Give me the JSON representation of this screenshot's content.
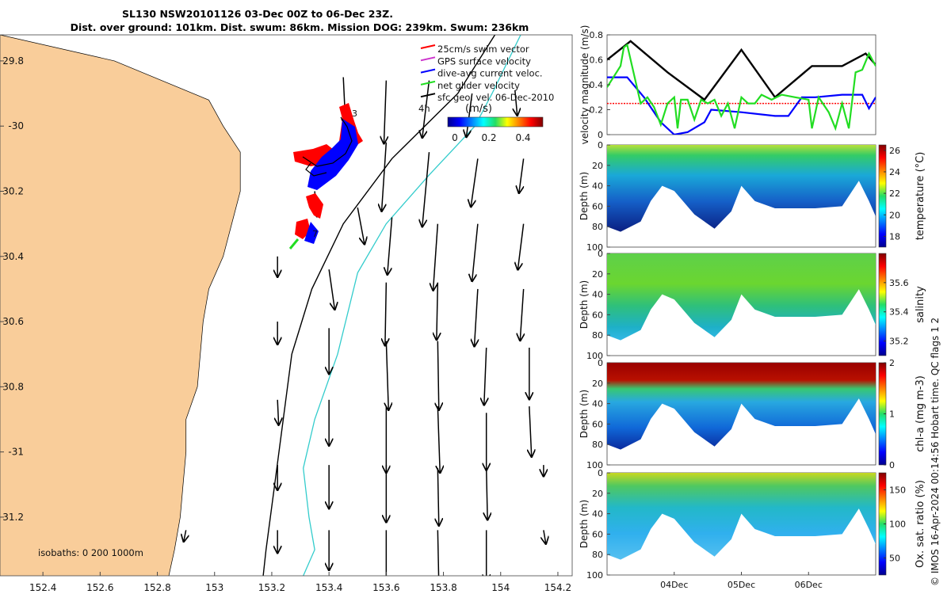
{
  "title_line1": "SL130 NSW20101126 03-Dec 00Z to 06-Dec 23Z.",
  "title_line2": "Dist. over ground: 101km. Dist. swum: 86km. Mission DOG: 239km. Swum: 236km",
  "credit": "© IMOS 16-Apr-2024 00:14:56 Hobart time. QC flags 1  2",
  "colors": {
    "land": "#f9cd9a",
    "swim_vector": "#ff0000",
    "gps_velocity": "#cc33cc",
    "dive_avg": "#0000ff",
    "net_glider": "#22dd22",
    "geo_vel": "#000000",
    "isobath_200": "#000000",
    "isobath_1000": "#33cccc"
  },
  "map": {
    "isobath_label": "isobaths: 0   200  1000m",
    "speed_4h_label": "4h",
    "legend": [
      {
        "label": "25cm/s swim vector",
        "key": "swim_vector"
      },
      {
        "label": "GPS surface velocity",
        "key": "gps_velocity"
      },
      {
        "label": "dive-avg current veloc.",
        "key": "dive_avg"
      },
      {
        "label": "net glider velocity",
        "key": "net_glider"
      },
      {
        "label": "sfc geo. vel. 06-Dec-2010",
        "key": "geo_vel"
      }
    ],
    "colorbar": {
      "units": "(m/s)",
      "ticks": [
        "0",
        "0.2",
        "0.4"
      ],
      "range": [
        0,
        0.5
      ]
    },
    "track_labels": [
      "3",
      "7"
    ]
  },
  "chart_data": [
    {
      "type": "arrow-map",
      "name": "glider-map",
      "xlabel": "longitude",
      "ylabel": "latitude",
      "xlim": [
        152.25,
        154.25
      ],
      "ylim": [
        -31.38,
        -29.72
      ],
      "xticks": [
        152.4,
        152.6,
        152.8,
        153,
        153.2,
        153.4,
        153.6,
        153.8,
        154,
        154.2
      ],
      "xtick_labels": [
        "152.4",
        "152.6",
        "152.8",
        "153",
        "153.2",
        "153.4",
        "153.6",
        "153.8",
        "154",
        "154.2"
      ],
      "yticks": [
        -29.8,
        -30,
        -30.2,
        -30.4,
        -30.6,
        -30.8,
        -31,
        -31.2
      ],
      "ytick_labels": [
        "29.8",
        "-30",
        "30.2",
        "30.4",
        "30.6",
        "30.8",
        "-31",
        "31.2"
      ],
      "coast_lon_by_lat": [
        [
          -29.72,
          152.25
        ],
        [
          -29.8,
          152.65
        ],
        [
          -29.92,
          152.98
        ],
        [
          -30.0,
          153.03
        ],
        [
          -30.08,
          153.09
        ],
        [
          -30.2,
          153.09
        ],
        [
          -30.3,
          153.06
        ],
        [
          -30.4,
          153.03
        ],
        [
          -30.5,
          152.98
        ],
        [
          -30.6,
          152.96
        ],
        [
          -30.7,
          152.95
        ],
        [
          -30.8,
          152.94
        ],
        [
          -30.9,
          152.9
        ],
        [
          -31.0,
          152.9
        ],
        [
          -31.1,
          152.89
        ],
        [
          -31.2,
          152.88
        ],
        [
          -31.3,
          152.86
        ],
        [
          -31.38,
          152.84
        ]
      ],
      "isobath_200m": [
        [
          -29.72,
          153.98
        ],
        [
          -29.9,
          153.85
        ],
        [
          -30.1,
          153.62
        ],
        [
          -30.3,
          153.45
        ],
        [
          -30.5,
          153.34
        ],
        [
          -30.7,
          153.27
        ],
        [
          -30.9,
          153.24
        ],
        [
          -31.1,
          153.21
        ],
        [
          -31.3,
          153.18
        ],
        [
          -31.38,
          153.17
        ]
      ],
      "isobath_1000m": [
        [
          -29.72,
          154.07
        ],
        [
          -29.9,
          153.97
        ],
        [
          -30.0,
          153.91
        ],
        [
          -30.15,
          153.75
        ],
        [
          -30.3,
          153.6
        ],
        [
          -30.45,
          153.5
        ],
        [
          -30.7,
          153.43
        ],
        [
          -30.9,
          153.35
        ],
        [
          -31.05,
          153.31
        ],
        [
          -31.2,
          153.33
        ],
        [
          -31.3,
          153.35
        ],
        [
          -31.38,
          153.31
        ]
      ],
      "geo_vectors": [
        {
          "lon": 153.45,
          "lat": -29.85,
          "u": 0.02,
          "v": -0.42
        },
        {
          "lon": 153.6,
          "lat": -29.86,
          "u": -0.02,
          "v": -0.55
        },
        {
          "lon": 153.75,
          "lat": -29.86,
          "u": -0.06,
          "v": -0.5
        },
        {
          "lon": 153.9,
          "lat": -29.9,
          "u": -0.05,
          "v": -0.38
        },
        {
          "lon": 154.05,
          "lat": -29.89,
          "u": 0.02,
          "v": -0.22
        },
        {
          "lon": 153.6,
          "lat": -30.05,
          "u": -0.04,
          "v": -0.6
        },
        {
          "lon": 153.75,
          "lat": -30.08,
          "u": -0.06,
          "v": -0.65
        },
        {
          "lon": 153.92,
          "lat": -30.1,
          "u": -0.06,
          "v": -0.42
        },
        {
          "lon": 154.08,
          "lat": -30.1,
          "u": -0.04,
          "v": -0.3
        },
        {
          "lon": 153.35,
          "lat": -30.2,
          "u": 0.02,
          "v": -0.22
        },
        {
          "lon": 153.5,
          "lat": -30.25,
          "u": 0.06,
          "v": -0.32
        },
        {
          "lon": 153.62,
          "lat": -30.28,
          "u": -0.04,
          "v": -0.5
        },
        {
          "lon": 153.78,
          "lat": -30.3,
          "u": -0.04,
          "v": -0.58
        },
        {
          "lon": 153.92,
          "lat": -30.3,
          "u": -0.05,
          "v": -0.5
        },
        {
          "lon": 154.08,
          "lat": -30.3,
          "u": -0.05,
          "v": -0.4
        },
        {
          "lon": 153.22,
          "lat": -30.4,
          "u": 0.0,
          "v": -0.18
        },
        {
          "lon": 153.4,
          "lat": -30.44,
          "u": 0.05,
          "v": -0.35
        },
        {
          "lon": 153.6,
          "lat": -30.48,
          "u": -0.01,
          "v": -0.55
        },
        {
          "lon": 153.78,
          "lat": -30.48,
          "u": -0.01,
          "v": -0.5
        },
        {
          "lon": 153.92,
          "lat": -30.5,
          "u": -0.03,
          "v": -0.5
        },
        {
          "lon": 154.08,
          "lat": -30.5,
          "u": -0.03,
          "v": -0.45
        },
        {
          "lon": 153.22,
          "lat": -30.6,
          "u": 0.0,
          "v": -0.2
        },
        {
          "lon": 153.4,
          "lat": -30.62,
          "u": 0.0,
          "v": -0.4
        },
        {
          "lon": 153.6,
          "lat": -30.66,
          "u": 0.02,
          "v": -0.6
        },
        {
          "lon": 153.78,
          "lat": -30.66,
          "u": 0.01,
          "v": -0.6
        },
        {
          "lon": 153.95,
          "lat": -30.68,
          "u": -0.02,
          "v": -0.5
        },
        {
          "lon": 154.1,
          "lat": -30.68,
          "u": 0.0,
          "v": -0.45
        },
        {
          "lon": 153.22,
          "lat": -30.84,
          "u": 0.01,
          "v": -0.22
        },
        {
          "lon": 153.4,
          "lat": -30.84,
          "u": 0.0,
          "v": -0.4
        },
        {
          "lon": 153.6,
          "lat": -30.86,
          "u": 0.0,
          "v": -0.58
        },
        {
          "lon": 153.78,
          "lat": -30.86,
          "u": 0.02,
          "v": -0.58
        },
        {
          "lon": 153.95,
          "lat": -30.88,
          "u": 0.0,
          "v": -0.5
        },
        {
          "lon": 154.1,
          "lat": -30.86,
          "u": 0.02,
          "v": -0.44
        },
        {
          "lon": 153.22,
          "lat": -31.04,
          "u": 0.0,
          "v": -0.22
        },
        {
          "lon": 153.4,
          "lat": -31.04,
          "u": 0.0,
          "v": -0.38
        },
        {
          "lon": 153.6,
          "lat": -31.04,
          "u": 0.0,
          "v": -0.5
        },
        {
          "lon": 153.78,
          "lat": -31.05,
          "u": 0.01,
          "v": -0.5
        },
        {
          "lon": 153.95,
          "lat": -31.05,
          "u": 0.01,
          "v": -0.45
        },
        {
          "lon": 154.15,
          "lat": -31.04,
          "u": 0.0,
          "v": -0.1
        },
        {
          "lon": 152.9,
          "lat": -31.24,
          "u": -0.02,
          "v": -0.1
        },
        {
          "lon": 153.22,
          "lat": -31.24,
          "u": 0.0,
          "v": -0.2
        },
        {
          "lon": 153.4,
          "lat": -31.24,
          "u": 0.0,
          "v": -0.35
        },
        {
          "lon": 153.6,
          "lat": -31.24,
          "u": 0.0,
          "v": -0.5
        },
        {
          "lon": 153.78,
          "lat": -31.24,
          "u": 0.01,
          "v": -0.48
        },
        {
          "lon": 153.95,
          "lat": -31.24,
          "u": 0.0,
          "v": -0.45
        },
        {
          "lon": 154.15,
          "lat": -31.24,
          "u": 0.02,
          "v": -0.12
        }
      ]
    },
    {
      "type": "line",
      "name": "velocity-magnitude",
      "ylabel": "velocity magnitude (m/s)",
      "xlim": [
        3.0,
        7.0
      ],
      "ylim": [
        0,
        0.8
      ],
      "yticks": [
        0,
        0.2,
        0.4,
        0.6,
        0.8
      ],
      "ytick_labels": [
        "0",
        "0.2",
        "0.4",
        "0.6",
        "0.8"
      ],
      "series": [
        {
          "name": "sfc geo. vel.",
          "key": "geo_vel",
          "x": [
            3.0,
            3.35,
            3.9,
            4.45,
            5.0,
            5.5,
            6.05,
            6.5,
            6.85,
            7.0
          ],
          "y": [
            0.6,
            0.75,
            0.5,
            0.28,
            0.68,
            0.3,
            0.55,
            0.55,
            0.65,
            0.56
          ]
        },
        {
          "name": "dive-avg current veloc.",
          "key": "dive_avg",
          "x": [
            3.0,
            3.3,
            3.55,
            3.8,
            4.0,
            4.2,
            4.45,
            4.55,
            5.0,
            5.5,
            5.7,
            5.9,
            6.1,
            6.5,
            6.8,
            6.9,
            7.0
          ],
          "y": [
            0.46,
            0.46,
            0.3,
            0.1,
            0.0,
            0.02,
            0.1,
            0.2,
            0.18,
            0.15,
            0.15,
            0.3,
            0.3,
            0.32,
            0.32,
            0.21,
            0.3
          ]
        },
        {
          "name": "net glider velocity",
          "key": "net_glider",
          "x": [
            3.0,
            3.2,
            3.25,
            3.3,
            3.5,
            3.6,
            3.7,
            3.8,
            3.9,
            4.0,
            4.05,
            4.1,
            4.2,
            4.3,
            4.4,
            4.5,
            4.6,
            4.7,
            4.8,
            4.9,
            5.0,
            5.1,
            5.2,
            5.3,
            5.45,
            5.6,
            5.8,
            6.0,
            6.05,
            6.15,
            6.3,
            6.4,
            6.5,
            6.6,
            6.7,
            6.8,
            6.9,
            7.0
          ],
          "y": [
            0.38,
            0.55,
            0.7,
            0.72,
            0.25,
            0.3,
            0.22,
            0.08,
            0.25,
            0.3,
            0.05,
            0.28,
            0.28,
            0.12,
            0.28,
            0.25,
            0.28,
            0.15,
            0.25,
            0.05,
            0.3,
            0.25,
            0.25,
            0.32,
            0.28,
            0.32,
            0.3,
            0.28,
            0.05,
            0.3,
            0.18,
            0.05,
            0.25,
            0.05,
            0.5,
            0.52,
            0.65,
            0.55
          ]
        }
      ],
      "reference_line": {
        "name": "25cm/s swim vector",
        "key": "swim_vector",
        "y": 0.25
      }
    },
    {
      "type": "heatmap",
      "name": "temperature-section",
      "ylabel": "Depth (m)",
      "clabel": "temperature (°C)",
      "yticks": [
        0,
        20,
        40,
        60,
        80,
        100
      ],
      "clim": [
        17,
        26.5
      ],
      "cticks": [
        "18",
        "20",
        "22",
        "24",
        "26"
      ],
      "bottom_depth_m": [
        [
          3.0,
          80
        ],
        [
          3.2,
          85
        ],
        [
          3.5,
          75
        ],
        [
          3.65,
          55
        ],
        [
          3.82,
          40
        ],
        [
          4.0,
          45
        ],
        [
          4.3,
          68
        ],
        [
          4.6,
          82
        ],
        [
          4.85,
          65
        ],
        [
          5.0,
          40
        ],
        [
          5.2,
          55
        ],
        [
          5.5,
          62
        ],
        [
          5.85,
          62
        ],
        [
          6.1,
          62
        ],
        [
          6.5,
          60
        ],
        [
          6.75,
          35
        ],
        [
          6.9,
          55
        ],
        [
          7.0,
          70
        ]
      ]
    },
    {
      "type": "heatmap",
      "name": "salinity-section",
      "ylabel": "Depth (m)",
      "clabel": "salinity",
      "yticks": [
        0,
        20,
        40,
        60,
        80,
        100
      ],
      "clim": [
        35.1,
        35.8
      ],
      "cticks": [
        "35.2",
        "35.4",
        "35.6"
      ],
      "bottom_depth_m": [
        [
          3.0,
          80
        ],
        [
          3.2,
          85
        ],
        [
          3.5,
          75
        ],
        [
          3.65,
          55
        ],
        [
          3.82,
          40
        ],
        [
          4.0,
          45
        ],
        [
          4.3,
          68
        ],
        [
          4.6,
          82
        ],
        [
          4.85,
          65
        ],
        [
          5.0,
          40
        ],
        [
          5.2,
          55
        ],
        [
          5.5,
          62
        ],
        [
          5.85,
          62
        ],
        [
          6.1,
          62
        ],
        [
          6.5,
          60
        ],
        [
          6.75,
          35
        ],
        [
          6.9,
          55
        ],
        [
          7.0,
          70
        ]
      ]
    },
    {
      "type": "heatmap",
      "name": "chla-section",
      "ylabel": "Depth (m)",
      "clabel": "chl-a (mg m-3)",
      "yticks": [
        0,
        20,
        40,
        60,
        80,
        100
      ],
      "clim": [
        0,
        2
      ],
      "cticks": [
        "0",
        "1",
        "2"
      ],
      "bottom_depth_m": [
        [
          3.0,
          80
        ],
        [
          3.2,
          85
        ],
        [
          3.5,
          75
        ],
        [
          3.65,
          55
        ],
        [
          3.82,
          40
        ],
        [
          4.0,
          45
        ],
        [
          4.3,
          68
        ],
        [
          4.6,
          82
        ],
        [
          4.85,
          65
        ],
        [
          5.0,
          40
        ],
        [
          5.2,
          55
        ],
        [
          5.5,
          62
        ],
        [
          5.85,
          62
        ],
        [
          6.1,
          62
        ],
        [
          6.5,
          60
        ],
        [
          6.75,
          35
        ],
        [
          6.9,
          55
        ],
        [
          7.0,
          70
        ]
      ]
    },
    {
      "type": "heatmap",
      "name": "oxygen-section",
      "ylabel": "Depth (m)",
      "clabel": "Ox. sat. ratio (%)",
      "yticks": [
        0,
        20,
        40,
        60,
        80,
        100
      ],
      "clim": [
        25,
        175
      ],
      "cticks": [
        "50",
        "100",
        "150"
      ],
      "xticks": [
        4.0,
        5.0,
        6.0
      ],
      "xtick_labels": [
        "04Dec",
        "05Dec",
        "06Dec"
      ],
      "bottom_depth_m": [
        [
          3.0,
          80
        ],
        [
          3.2,
          85
        ],
        [
          3.5,
          75
        ],
        [
          3.65,
          55
        ],
        [
          3.82,
          40
        ],
        [
          4.0,
          45
        ],
        [
          4.3,
          68
        ],
        [
          4.6,
          82
        ],
        [
          4.85,
          65
        ],
        [
          5.0,
          40
        ],
        [
          5.2,
          55
        ],
        [
          5.5,
          62
        ],
        [
          5.85,
          62
        ],
        [
          6.1,
          62
        ],
        [
          6.5,
          60
        ],
        [
          6.75,
          35
        ],
        [
          6.9,
          55
        ],
        [
          7.0,
          70
        ]
      ]
    }
  ]
}
